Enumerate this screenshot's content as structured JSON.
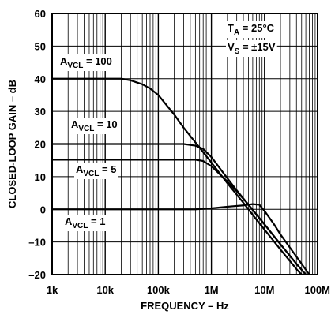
{
  "chart_data": {
    "type": "line",
    "title": "",
    "xlabel": "FREQUENCY – Hz",
    "ylabel": "CLOSED-LOOP GAIN – dB",
    "xscale": "log",
    "xlim": [
      1000,
      100000000
    ],
    "ylim": [
      -20,
      60
    ],
    "grid": true,
    "x_ticks": [
      {
        "value": 1000,
        "label": "1k"
      },
      {
        "value": 10000,
        "label": "10k"
      },
      {
        "value": 100000,
        "label": "100k"
      },
      {
        "value": 1000000,
        "label": "1M"
      },
      {
        "value": 10000000,
        "label": "10M"
      },
      {
        "value": 100000000,
        "label": "100M"
      }
    ],
    "y_ticks": [
      {
        "value": -20,
        "label": "–20"
      },
      {
        "value": -10,
        "label": "–10"
      },
      {
        "value": 0,
        "label": "0"
      },
      {
        "value": 10,
        "label": "10"
      },
      {
        "value": 20,
        "label": "20"
      },
      {
        "value": 30,
        "label": "30"
      },
      {
        "value": 40,
        "label": "40"
      },
      {
        "value": 50,
        "label": "50"
      },
      {
        "value": 60,
        "label": "60"
      }
    ],
    "conditions": {
      "ta_prefix": "T",
      "ta_sub": "A",
      "ta_value": " = 25°C",
      "vs_prefix": "V",
      "vs_sub": "S",
      "vs_value": " = ±15V"
    },
    "series": [
      {
        "label_prefix": "A",
        "label_sub": "VCL",
        "label_value": " = 100",
        "points": [
          [
            1000,
            40
          ],
          [
            20000,
            40
          ],
          [
            30000,
            39.5
          ],
          [
            50000,
            38.3
          ],
          [
            70000,
            37
          ],
          [
            100000,
            35
          ],
          [
            200000,
            29
          ],
          [
            300000,
            25
          ],
          [
            500000,
            20.5
          ],
          [
            700000,
            17.5
          ],
          [
            1000000,
            14.3
          ],
          [
            2000000,
            8
          ],
          [
            4000000,
            2
          ],
          [
            6000000,
            -1.7
          ],
          [
            10000000,
            -6.2
          ],
          [
            20000000,
            -12.3
          ],
          [
            40000000,
            -18.3
          ],
          [
            50000000,
            -20
          ]
        ]
      },
      {
        "label_prefix": "A",
        "label_sub": "VCL",
        "label_value": " = 10",
        "points": [
          [
            1000,
            20
          ],
          [
            300000,
            20
          ],
          [
            500000,
            19.5
          ],
          [
            700000,
            18.5
          ],
          [
            1000000,
            16
          ],
          [
            2000000,
            9.5
          ],
          [
            3000000,
            5.8
          ],
          [
            5000000,
            1.4
          ],
          [
            10000000,
            -4.6
          ],
          [
            20000000,
            -10.7
          ],
          [
            40000000,
            -16.7
          ],
          [
            60000000,
            -20
          ]
        ]
      },
      {
        "label_prefix": "A",
        "label_sub": "VCL",
        "label_value": " = 5",
        "points": [
          [
            1000,
            15.2
          ],
          [
            500000,
            15.2
          ],
          [
            700000,
            14.8
          ],
          [
            1000000,
            13.2
          ],
          [
            2000000,
            8.5
          ],
          [
            3000000,
            5.5
          ],
          [
            5000000,
            1.4
          ],
          [
            10000000,
            -4.6
          ],
          [
            20000000,
            -10.7
          ],
          [
            40000000,
            -16.7
          ],
          [
            60000000,
            -20
          ]
        ]
      },
      {
        "label_prefix": "A",
        "label_sub": "VCL",
        "label_value": " = 1",
        "points": [
          [
            1000,
            0
          ],
          [
            500000,
            0
          ],
          [
            1000000,
            0.3
          ],
          [
            2000000,
            0.8
          ],
          [
            4000000,
            1.2
          ],
          [
            6000000,
            1.6
          ],
          [
            8000000,
            1.4
          ],
          [
            10000000,
            -0.5
          ],
          [
            15000000,
            -4.5
          ],
          [
            20000000,
            -7.7
          ],
          [
            40000000,
            -14.5
          ],
          [
            70000000,
            -20
          ]
        ]
      }
    ]
  }
}
